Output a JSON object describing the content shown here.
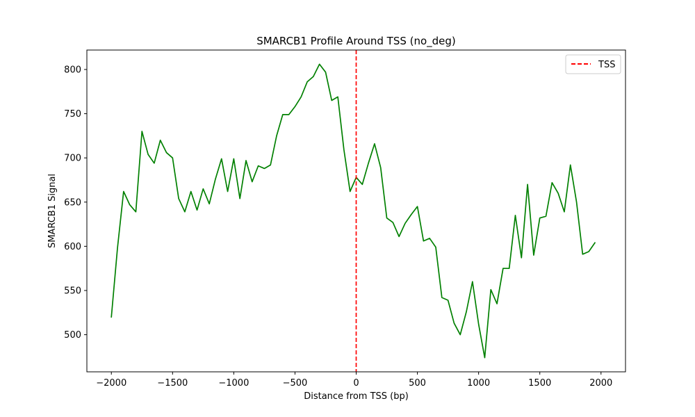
{
  "chart_data": {
    "type": "line",
    "title": "SMARCB1 Profile Around TSS (no_deg)",
    "xlabel": "Distance from TSS (bp)",
    "ylabel": "SMARCB1 Signal",
    "xlim": [
      -2200,
      2200
    ],
    "ylim": [
      458,
      822
    ],
    "grid": false,
    "legend_position": "top-right",
    "xticks": [
      -2000,
      -1500,
      -1000,
      -500,
      0,
      500,
      1000,
      1500,
      2000
    ],
    "xtick_labels": [
      "−2000",
      "−1500",
      "−1000",
      "−500",
      "0",
      "500",
      "1000",
      "1500",
      "2000"
    ],
    "yticks": [
      500,
      550,
      600,
      650,
      700,
      750,
      800
    ],
    "ytick_labels": [
      "500",
      "550",
      "600",
      "650",
      "700",
      "750",
      "800"
    ],
    "series": [
      {
        "color": "#008000",
        "points": [
          [
            -2000,
            520
          ],
          [
            -1950,
            598
          ],
          [
            -1900,
            662
          ],
          [
            -1850,
            647
          ],
          [
            -1800,
            639
          ],
          [
            -1750,
            730
          ],
          [
            -1700,
            704
          ],
          [
            -1650,
            694
          ],
          [
            -1600,
            720
          ],
          [
            -1550,
            706
          ],
          [
            -1500,
            700
          ],
          [
            -1450,
            654
          ],
          [
            -1400,
            639
          ],
          [
            -1350,
            662
          ],
          [
            -1300,
            641
          ],
          [
            -1250,
            665
          ],
          [
            -1200,
            648
          ],
          [
            -1150,
            676
          ],
          [
            -1100,
            699
          ],
          [
            -1050,
            662
          ],
          [
            -1000,
            699
          ],
          [
            -950,
            654
          ],
          [
            -900,
            697
          ],
          [
            -850,
            673
          ],
          [
            -800,
            691
          ],
          [
            -750,
            688
          ],
          [
            -700,
            692
          ],
          [
            -650,
            725
          ],
          [
            -600,
            749
          ],
          [
            -550,
            749
          ],
          [
            -500,
            758
          ],
          [
            -450,
            769
          ],
          [
            -400,
            786
          ],
          [
            -350,
            792
          ],
          [
            -300,
            806
          ],
          [
            -250,
            797
          ],
          [
            -200,
            765
          ],
          [
            -150,
            769
          ],
          [
            -100,
            709
          ],
          [
            -50,
            662
          ],
          [
            0,
            678
          ],
          [
            50,
            670
          ],
          [
            100,
            694
          ],
          [
            150,
            716
          ],
          [
            200,
            689
          ],
          [
            250,
            632
          ],
          [
            300,
            627
          ],
          [
            350,
            611
          ],
          [
            400,
            626
          ],
          [
            450,
            636
          ],
          [
            500,
            645
          ],
          [
            550,
            606
          ],
          [
            600,
            609
          ],
          [
            650,
            599
          ],
          [
            700,
            542
          ],
          [
            750,
            539
          ],
          [
            800,
            513
          ],
          [
            850,
            500
          ],
          [
            900,
            526
          ],
          [
            950,
            560
          ],
          [
            1000,
            512
          ],
          [
            1050,
            474
          ],
          [
            1100,
            551
          ],
          [
            1150,
            535
          ],
          [
            1200,
            575
          ],
          [
            1250,
            575
          ],
          [
            1300,
            635
          ],
          [
            1350,
            587
          ],
          [
            1400,
            670
          ],
          [
            1450,
            590
          ],
          [
            1500,
            632
          ],
          [
            1550,
            634
          ],
          [
            1600,
            672
          ],
          [
            1650,
            660
          ],
          [
            1700,
            639
          ],
          [
            1750,
            692
          ],
          [
            1800,
            650
          ],
          [
            1850,
            591
          ],
          [
            1900,
            594
          ],
          [
            1950,
            604
          ]
        ]
      }
    ],
    "reference_lines": [
      {
        "orientation": "vertical",
        "x": 0,
        "name": "TSS",
        "color": "#ff0000",
        "style": "dashed"
      }
    ]
  }
}
